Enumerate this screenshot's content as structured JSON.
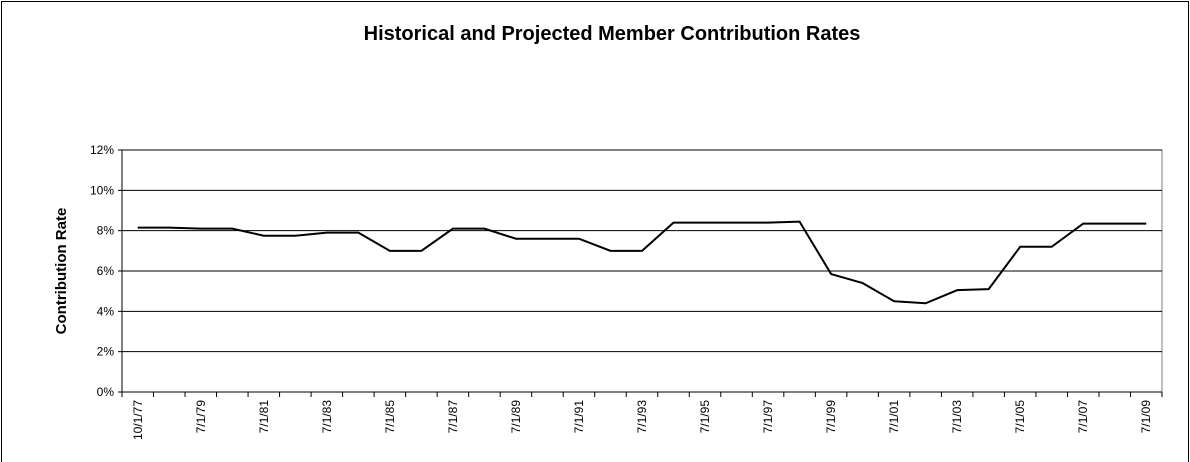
{
  "chart_data": {
    "type": "line",
    "title": "Historical and Projected Member Contribution Rates",
    "y_label": "Contribution Rate",
    "categories": [
      "10/1/77",
      null,
      "7/1/79",
      null,
      "7/1/81",
      null,
      "7/1/83",
      null,
      "7/1/85",
      null,
      "7/1/87",
      null,
      "7/1/89",
      null,
      "7/1/91",
      null,
      "7/1/93",
      null,
      "7/1/95",
      null,
      "7/1/97",
      null,
      "7/1/99",
      null,
      "7/1/01",
      null,
      "7/1/03",
      null,
      "7/1/05",
      null,
      "7/1/07",
      null,
      "7/1/09"
    ],
    "series": [
      {
        "name": "Contribution Rate",
        "color": "#000000",
        "values": [
          8.15,
          8.15,
          8.1,
          8.1,
          7.75,
          7.75,
          7.9,
          7.9,
          7.0,
          7.0,
          8.1,
          8.1,
          7.6,
          7.6,
          7.6,
          7.0,
          7.0,
          8.4,
          8.4,
          8.4,
          8.4,
          8.45,
          5.85,
          5.4,
          4.5,
          4.4,
          5.05,
          5.1,
          7.2,
          7.2,
          8.35,
          8.35,
          8.35
        ]
      }
    ],
    "ylim": [
      0,
      12
    ],
    "yticks": [
      {
        "value": 0,
        "label": "0%"
      },
      {
        "value": 2,
        "label": "2%"
      },
      {
        "value": 4,
        "label": "4%"
      },
      {
        "value": 6,
        "label": "6%"
      },
      {
        "value": 8,
        "label": "8%"
      },
      {
        "value": 10,
        "label": "10%"
      },
      {
        "value": 12,
        "label": "12%"
      }
    ],
    "grid": true
  }
}
